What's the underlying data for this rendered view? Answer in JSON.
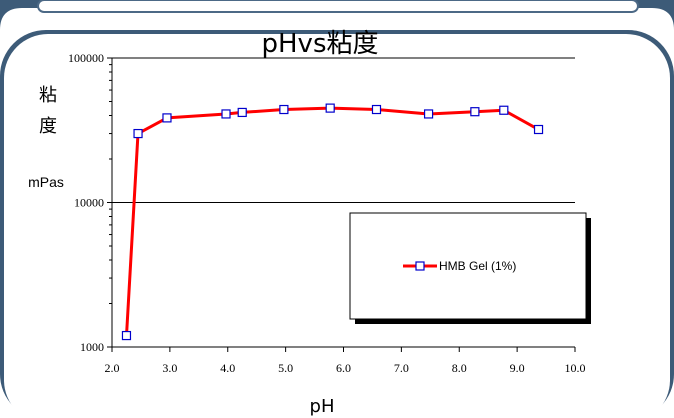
{
  "chart_data": {
    "type": "line",
    "title": "pHvs粘度",
    "xlabel": "pH",
    "ylabel_chars": [
      "粘",
      "度"
    ],
    "yunit": "mPas",
    "yscale": "log",
    "xlim": [
      2.0,
      10.0
    ],
    "ylim": [
      1000,
      100000
    ],
    "xticks": [
      "2.0",
      "3.0",
      "4.0",
      "5.0",
      "6.0",
      "7.0",
      "8.0",
      "9.0",
      "10.0"
    ],
    "yticks": [
      "1000",
      "10000",
      "100000"
    ],
    "grid": "horizontal major lines",
    "legend_placement": "lower-right inside plot",
    "series": [
      {
        "name": "HMB Gel (1%)",
        "color": "#ff0000",
        "marker_color": "#0000cc",
        "marker": "square",
        "x": [
          2.25,
          2.45,
          2.95,
          3.97,
          4.25,
          4.97,
          5.77,
          6.57,
          7.47,
          8.27,
          8.77,
          9.37
        ],
        "y": [
          1200,
          30000,
          38500,
          41000,
          42000,
          44000,
          45000,
          44000,
          41000,
          42500,
          43500,
          32000
        ]
      }
    ]
  }
}
